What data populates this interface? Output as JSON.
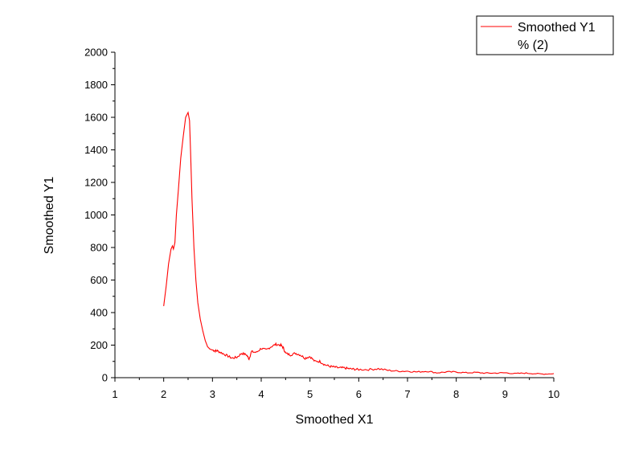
{
  "chart_data": {
    "type": "line",
    "xlabel": "Smoothed X1",
    "ylabel": "Smoothed Y1",
    "xlim": [
      1,
      10
    ],
    "ylim": [
      0,
      2000
    ],
    "x_ticks": [
      1,
      2,
      3,
      4,
      5,
      6,
      7,
      8,
      9,
      10
    ],
    "y_ticks": [
      0,
      200,
      400,
      600,
      800,
      1000,
      1200,
      1400,
      1600,
      1800,
      2000
    ],
    "grid": false,
    "legend": {
      "position": "top-right",
      "entries": [
        {
          "label_line1": "Smoothed Y1",
          "label_line2": "% (2)",
          "color": "#ff0000"
        }
      ]
    },
    "series": [
      {
        "name": "Smoothed Y1 % (2)",
        "color": "#ff0000",
        "x": [
          2.0,
          2.05,
          2.1,
          2.15,
          2.18,
          2.2,
          2.23,
          2.26,
          2.3,
          2.35,
          2.4,
          2.45,
          2.5,
          2.53,
          2.55,
          2.58,
          2.62,
          2.66,
          2.7,
          2.75,
          2.8,
          2.85,
          2.9,
          2.95,
          3.0,
          3.05,
          3.1,
          3.2,
          3.3,
          3.4,
          3.5,
          3.6,
          3.7,
          3.75,
          3.8,
          3.9,
          4.0,
          4.1,
          4.2,
          4.3,
          4.4,
          4.45,
          4.5,
          4.6,
          4.7,
          4.8,
          4.9,
          5.0,
          5.1,
          5.2,
          5.3,
          5.4,
          5.5,
          5.6,
          5.7,
          5.8,
          5.9,
          6.0,
          6.2,
          6.4,
          6.6,
          6.8,
          7.0,
          7.2,
          7.4,
          7.6,
          7.8,
          8.0,
          8.2,
          8.4,
          8.6,
          8.8,
          9.0,
          9.2,
          9.4,
          9.6,
          9.8,
          10.0
        ],
        "values": [
          440,
          560,
          700,
          790,
          810,
          790,
          830,
          1000,
          1150,
          1350,
          1480,
          1600,
          1630,
          1580,
          1400,
          1100,
          800,
          600,
          460,
          360,
          290,
          230,
          190,
          175,
          170,
          165,
          165,
          150,
          135,
          120,
          125,
          150,
          140,
          115,
          160,
          155,
          180,
          170,
          190,
          205,
          200,
          185,
          150,
          140,
          150,
          140,
          120,
          130,
          100,
          100,
          80,
          70,
          65,
          60,
          60,
          55,
          52,
          50,
          50,
          55,
          45,
          40,
          40,
          35,
          40,
          30,
          35,
          35,
          30,
          32,
          28,
          28,
          30,
          25,
          28,
          25,
          22,
          25
        ]
      }
    ]
  }
}
